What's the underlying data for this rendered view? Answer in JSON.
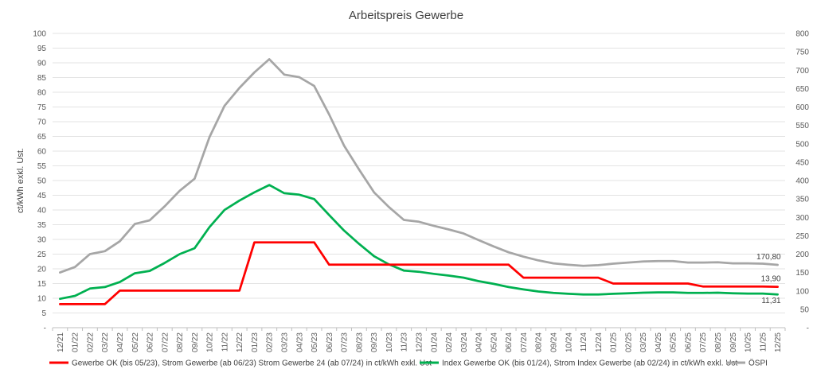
{
  "chart_data": {
    "type": "line",
    "title": "Arbeitspreis Gewerbe",
    "ylabel": "ct/kWh exkl. Ust.",
    "ylim": [
      0,
      100
    ],
    "y2lim": [
      0,
      800
    ],
    "y_ticks": [
      "-",
      "5",
      "10",
      "15",
      "20",
      "25",
      "30",
      "35",
      "40",
      "45",
      "50",
      "55",
      "60",
      "65",
      "70",
      "75",
      "80",
      "85",
      "90",
      "95",
      "100"
    ],
    "y2_ticks": [
      "-",
      "50",
      "100",
      "150",
      "200",
      "250",
      "300",
      "350",
      "400",
      "450",
      "500",
      "550",
      "600",
      "650",
      "700",
      "750",
      "800"
    ],
    "grid": true,
    "legend": "bottom",
    "categories": [
      "12/21",
      "01/22",
      "02/22",
      "03/22",
      "04/22",
      "05/22",
      "06/22",
      "07/22",
      "08/22",
      "09/22",
      "10/22",
      "11/22",
      "12/22",
      "01/23",
      "02/23",
      "03/23",
      "04/23",
      "05/23",
      "06/23",
      "07/23",
      "08/23",
      "09/23",
      "10/23",
      "11/23",
      "12/23",
      "01/24",
      "02/24",
      "03/24",
      "04/24",
      "05/24",
      "06/24",
      "07/24",
      "08/24",
      "09/24",
      "10/24",
      "11/24",
      "12/24",
      "01/25",
      "02/25",
      "03/25",
      "04/25",
      "05/25",
      "06/25",
      "07/25",
      "08/25",
      "09/25",
      "10/25",
      "11/25",
      "12/25"
    ],
    "series": [
      {
        "name": "Gewerbe OK (bis 05/23), Strom Gewerbe (ab 06/23) Strom Gewerbe 24 (ab 07/24) in ct/kWh exkl. Ust",
        "axis": "left",
        "color": "#ff0000",
        "values": [
          8,
          8,
          8,
          8,
          12.6,
          12.6,
          12.6,
          12.6,
          12.6,
          12.6,
          12.6,
          12.6,
          12.6,
          29,
          29,
          29,
          29,
          29,
          21.4,
          21.4,
          21.4,
          21.4,
          21.4,
          21.4,
          21.4,
          21.4,
          21.4,
          21.4,
          21.4,
          21.4,
          21.4,
          17,
          17,
          17,
          17,
          17,
          17,
          15,
          15,
          15,
          15,
          15,
          15,
          14,
          14,
          14,
          14,
          14,
          13.9
        ],
        "end_label": "13,90"
      },
      {
        "name": "Index Gewerbe OK (bis 01/24), Strom Index Gewerbe (ab 02/24) in ct/kWh exkl. Ust",
        "axis": "left",
        "color": "#00b050",
        "values": [
          9.8,
          10.8,
          13.3,
          13.8,
          15.5,
          18.5,
          19.3,
          22,
          25,
          27,
          34.2,
          40,
          43.2,
          46,
          48.5,
          45.7,
          45.2,
          43.7,
          38.3,
          33,
          28.5,
          24.3,
          21.5,
          19.4,
          19,
          18.3,
          17.7,
          17,
          15.8,
          14.9,
          13.8,
          13,
          12.3,
          11.8,
          11.5,
          11.3,
          11.3,
          11.5,
          11.7,
          11.9,
          12,
          12,
          11.8,
          11.8,
          11.9,
          11.7,
          11.6,
          11.6,
          11.31
        ],
        "end_label": "11,31"
      },
      {
        "name": "ÖSPI",
        "axis": "right",
        "color": "#a6a6a6",
        "values": [
          150,
          165,
          200,
          208,
          235,
          282,
          292,
          330,
          372,
          405,
          518,
          603,
          652,
          694,
          730,
          688,
          681,
          657,
          580,
          495,
          430,
          368,
          328,
          293,
          288,
          277,
          267,
          256,
          238,
          221,
          205,
          193,
          183,
          175,
          171,
          168,
          170,
          174,
          177,
          180,
          181,
          181,
          177,
          177,
          178,
          175,
          175,
          174,
          170.8
        ],
        "end_label": "170,80"
      }
    ]
  }
}
